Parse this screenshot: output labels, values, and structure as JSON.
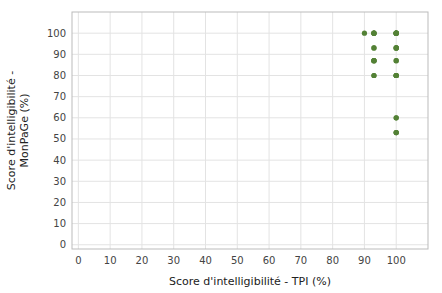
{
  "chart_data": {
    "type": "scatter",
    "xlabel": "Score d'intelligibilité - TPI (%)",
    "ylabel": "Score d'intelligibilité -\nMonPaGe (%)",
    "x": [
      90,
      93,
      93,
      93,
      93,
      93,
      93,
      93,
      93,
      93,
      93,
      93,
      93,
      100,
      100,
      100,
      100,
      100,
      100,
      100,
      100,
      100,
      100,
      100,
      100,
      100,
      100,
      100,
      100,
      100,
      100,
      100,
      100,
      100,
      100
    ],
    "values": [
      100,
      100,
      100,
      100,
      100,
      93,
      93,
      87,
      87,
      87,
      87,
      80,
      80,
      100,
      100,
      100,
      100,
      100,
      100,
      93,
      93,
      93,
      93,
      87,
      87,
      80,
      80,
      80,
      80,
      80,
      60,
      60,
      53,
      53,
      53
    ],
    "color": "#538135",
    "xlim": [
      -2,
      110
    ],
    "ylim": [
      -2,
      110
    ],
    "xticks": [
      0,
      10,
      20,
      30,
      40,
      50,
      60,
      70,
      80,
      90,
      100
    ],
    "yticks": [
      0,
      10,
      20,
      30,
      40,
      50,
      60,
      70,
      80,
      90,
      100
    ],
    "grid": true
  }
}
